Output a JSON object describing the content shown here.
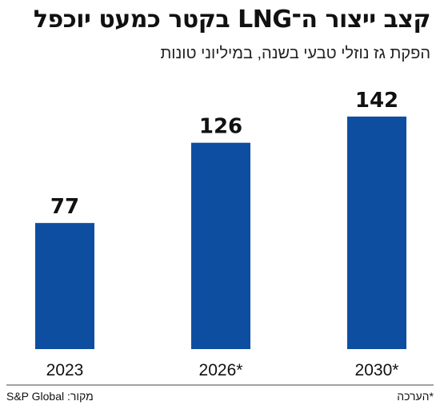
{
  "title": "קצב ייצור ה־LNG בקטר כמעט יוכפל",
  "subtitle": "הפקת גז נוזלי טבעי בשנה, במיליוני טונות",
  "footer": {
    "source": "מקור: S&P Global",
    "note": "*הערכה"
  },
  "colors": {
    "bar": "#0d4ea1",
    "axis": "#444444"
  },
  "chart_data": {
    "type": "bar",
    "title": "קצב ייצור ה־LNG בקטר כמעט יוכפל",
    "subtitle": "הפקת גז נוזלי טבעי בשנה, במיליוני טונות",
    "categories": [
      "2023",
      "2026*",
      "2030*"
    ],
    "values": [
      77,
      126,
      142
    ],
    "ylim": [
      0,
      200
    ],
    "grid": false,
    "legend": "none"
  }
}
